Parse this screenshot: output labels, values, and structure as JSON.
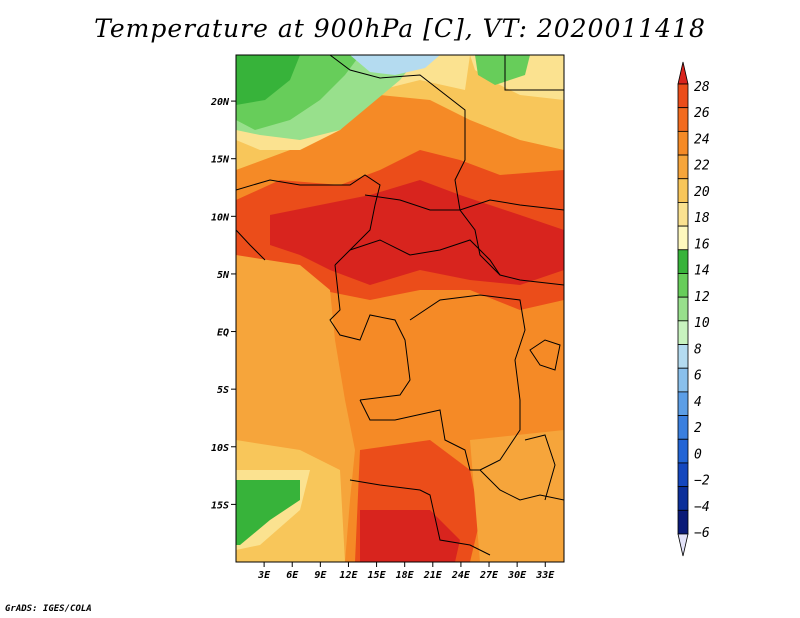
{
  "title": "Temperature at 900hPa [C], VT: 2020011418",
  "credit": "GrADS: IGES/COLA",
  "map": {
    "lon_range": [
      0,
      35
    ],
    "lat_range": [
      -20,
      24
    ],
    "lon_ticks": [
      {
        "value": 3,
        "label": "3E"
      },
      {
        "value": 6,
        "label": "6E"
      },
      {
        "value": 9,
        "label": "9E"
      },
      {
        "value": 12,
        "label": "12E"
      },
      {
        "value": 15,
        "label": "15E"
      },
      {
        "value": 18,
        "label": "18E"
      },
      {
        "value": 21,
        "label": "21E"
      },
      {
        "value": 24,
        "label": "24E"
      },
      {
        "value": 27,
        "label": "27E"
      },
      {
        "value": 30,
        "label": "30E"
      },
      {
        "value": 33,
        "label": "33E"
      }
    ],
    "lat_ticks": [
      {
        "value": 20,
        "label": "20N"
      },
      {
        "value": 15,
        "label": "15N"
      },
      {
        "value": 10,
        "label": "10N"
      },
      {
        "value": 5,
        "label": "5N"
      },
      {
        "value": 0,
        "label": "EQ"
      },
      {
        "value": -5,
        "label": "5S"
      },
      {
        "value": -10,
        "label": "10S"
      },
      {
        "value": -15,
        "label": "15S"
      }
    ]
  },
  "colorbar": {
    "levels": [
      28,
      26,
      24,
      22,
      20,
      18,
      16,
      14,
      12,
      10,
      8,
      6,
      4,
      2,
      0,
      -2,
      -4,
      -6
    ],
    "labels": [
      "28",
      "26",
      "24",
      "22",
      "20",
      "18",
      "16",
      "14",
      "12",
      "10",
      "8",
      "6",
      "4",
      "2",
      "0",
      "−2",
      "−4",
      "−6"
    ],
    "colors_top_to_bottom": [
      "#d8241e",
      "#eb4d1a",
      "#f26b1f",
      "#f58a26",
      "#f6a53b",
      "#f8c65a",
      "#fbe290",
      "#fef8be",
      "#37b33a",
      "#67cd5a",
      "#98e08c",
      "#c8f3bf",
      "#b4dbf0",
      "#8ac0ec",
      "#5c9ee6",
      "#3a7fdf",
      "#2264d5",
      "#1447be",
      "#0b2f9a",
      "#0a1a78",
      "#e2e2f8"
    ]
  },
  "colors": {
    "hot": "#d8241e",
    "warm": "#eb4d1a",
    "orange": "#f58a26",
    "lightorange": "#f6a53b",
    "yellow": "#f8c65a",
    "paleyellow": "#fbe290",
    "green": "#37b33a",
    "lightgreen": "#67cd5a",
    "palegreen": "#98e08c",
    "lightblue": "#b4dbf0"
  }
}
